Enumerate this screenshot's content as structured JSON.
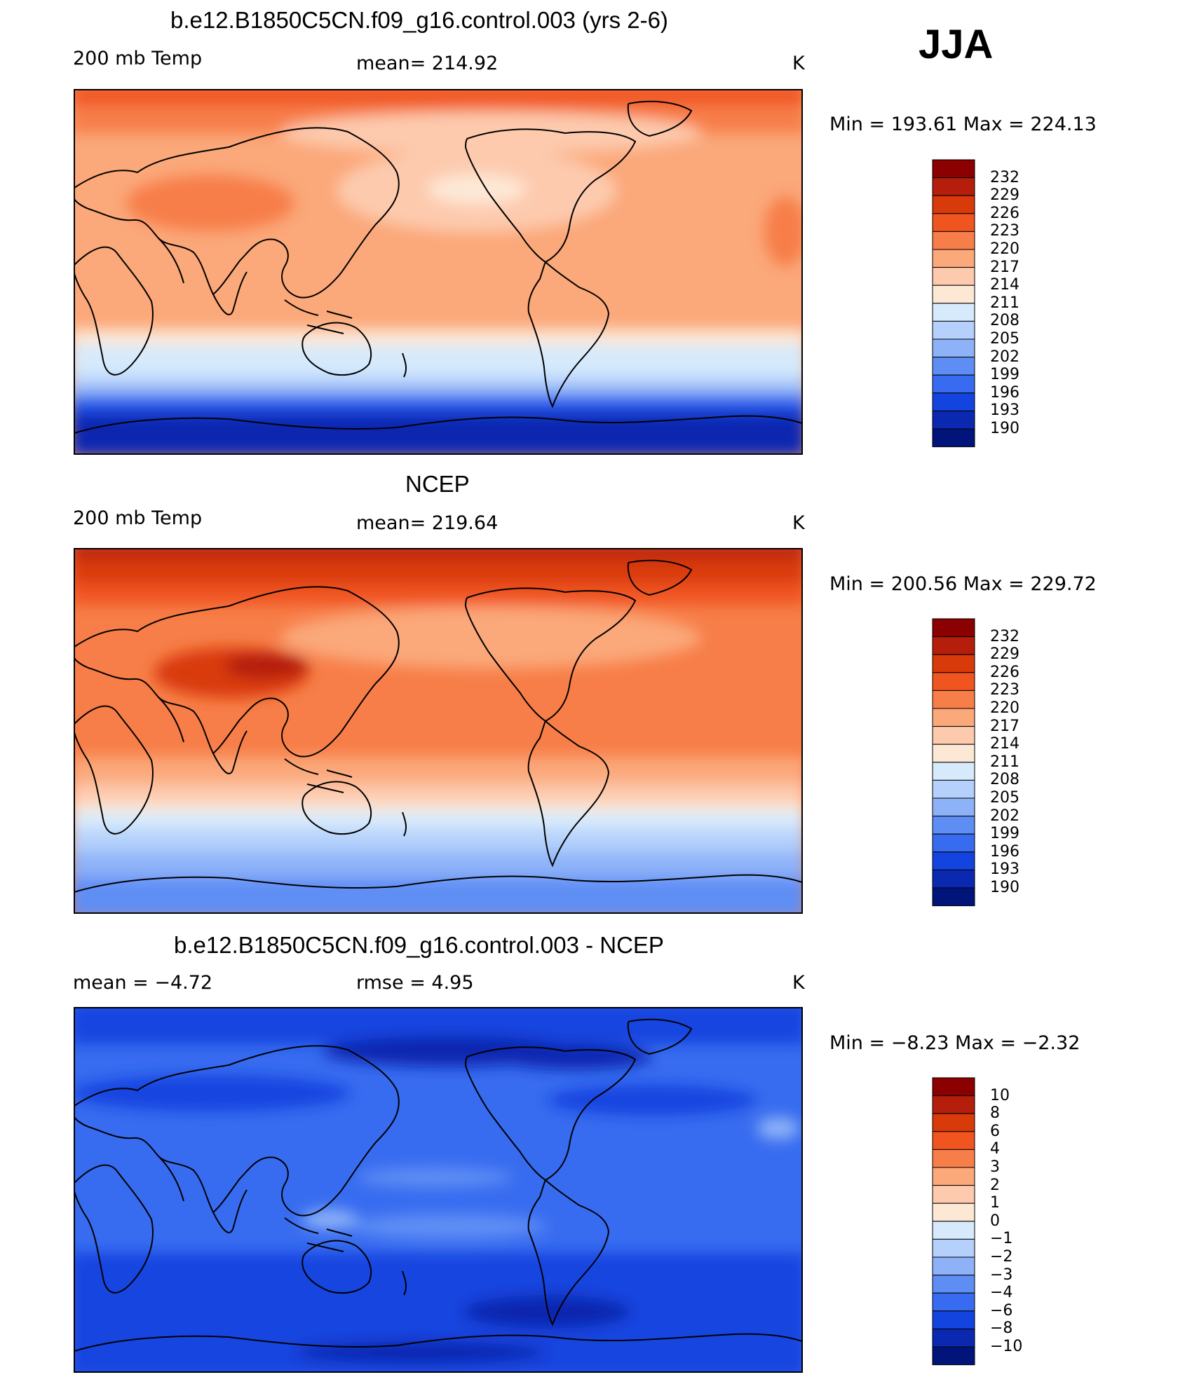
{
  "season": "JJA",
  "panels": [
    {
      "title": "b.e12.B1850C5CN.f09_g16.control.003 (yrs 2-6)",
      "left_label": "200 mb Temp",
      "center_label": "mean=  214.92",
      "right_label": "K",
      "stats": "Min  =  193.61  Max  =  224.13",
      "colorbar_labels": [
        "232",
        "229",
        "226",
        "223",
        "220",
        "217",
        "214",
        "211",
        "208",
        "205",
        "202",
        "199",
        "196",
        "193",
        "190"
      ]
    },
    {
      "title": "NCEP",
      "left_label": "200 mb Temp",
      "center_label": "mean=  219.64",
      "right_label": "K",
      "stats": "Min  =  200.56  Max  =  229.72",
      "colorbar_labels": [
        "232",
        "229",
        "226",
        "223",
        "220",
        "217",
        "214",
        "211",
        "208",
        "205",
        "202",
        "199",
        "196",
        "193",
        "190"
      ]
    },
    {
      "title": "b.e12.B1850C5CN.f09_g16.control.003 - NCEP",
      "left_label": "mean  =    −4.72",
      "center_label": "rmse  =     4.95",
      "right_label": "K",
      "stats": "Min  =    −8.23  Max  =    −2.32",
      "colorbar_labels": [
        "10",
        "8",
        "6",
        "4",
        "3",
        "2",
        "1",
        "0",
        "−1",
        "−2",
        "−3",
        "−4",
        "−6",
        "−8",
        "−10"
      ]
    }
  ],
  "colorbar_colors": [
    "#8b0000",
    "#b41e0a",
    "#d93a0a",
    "#f05520",
    "#f77e48",
    "#fba87a",
    "#fdcaae",
    "#fde8d6",
    "#d6eafc",
    "#b4d0fb",
    "#8eb2f8",
    "#5e8ef4",
    "#386cf0",
    "#1444e0",
    "#0a28b0",
    "#00147a"
  ]
}
